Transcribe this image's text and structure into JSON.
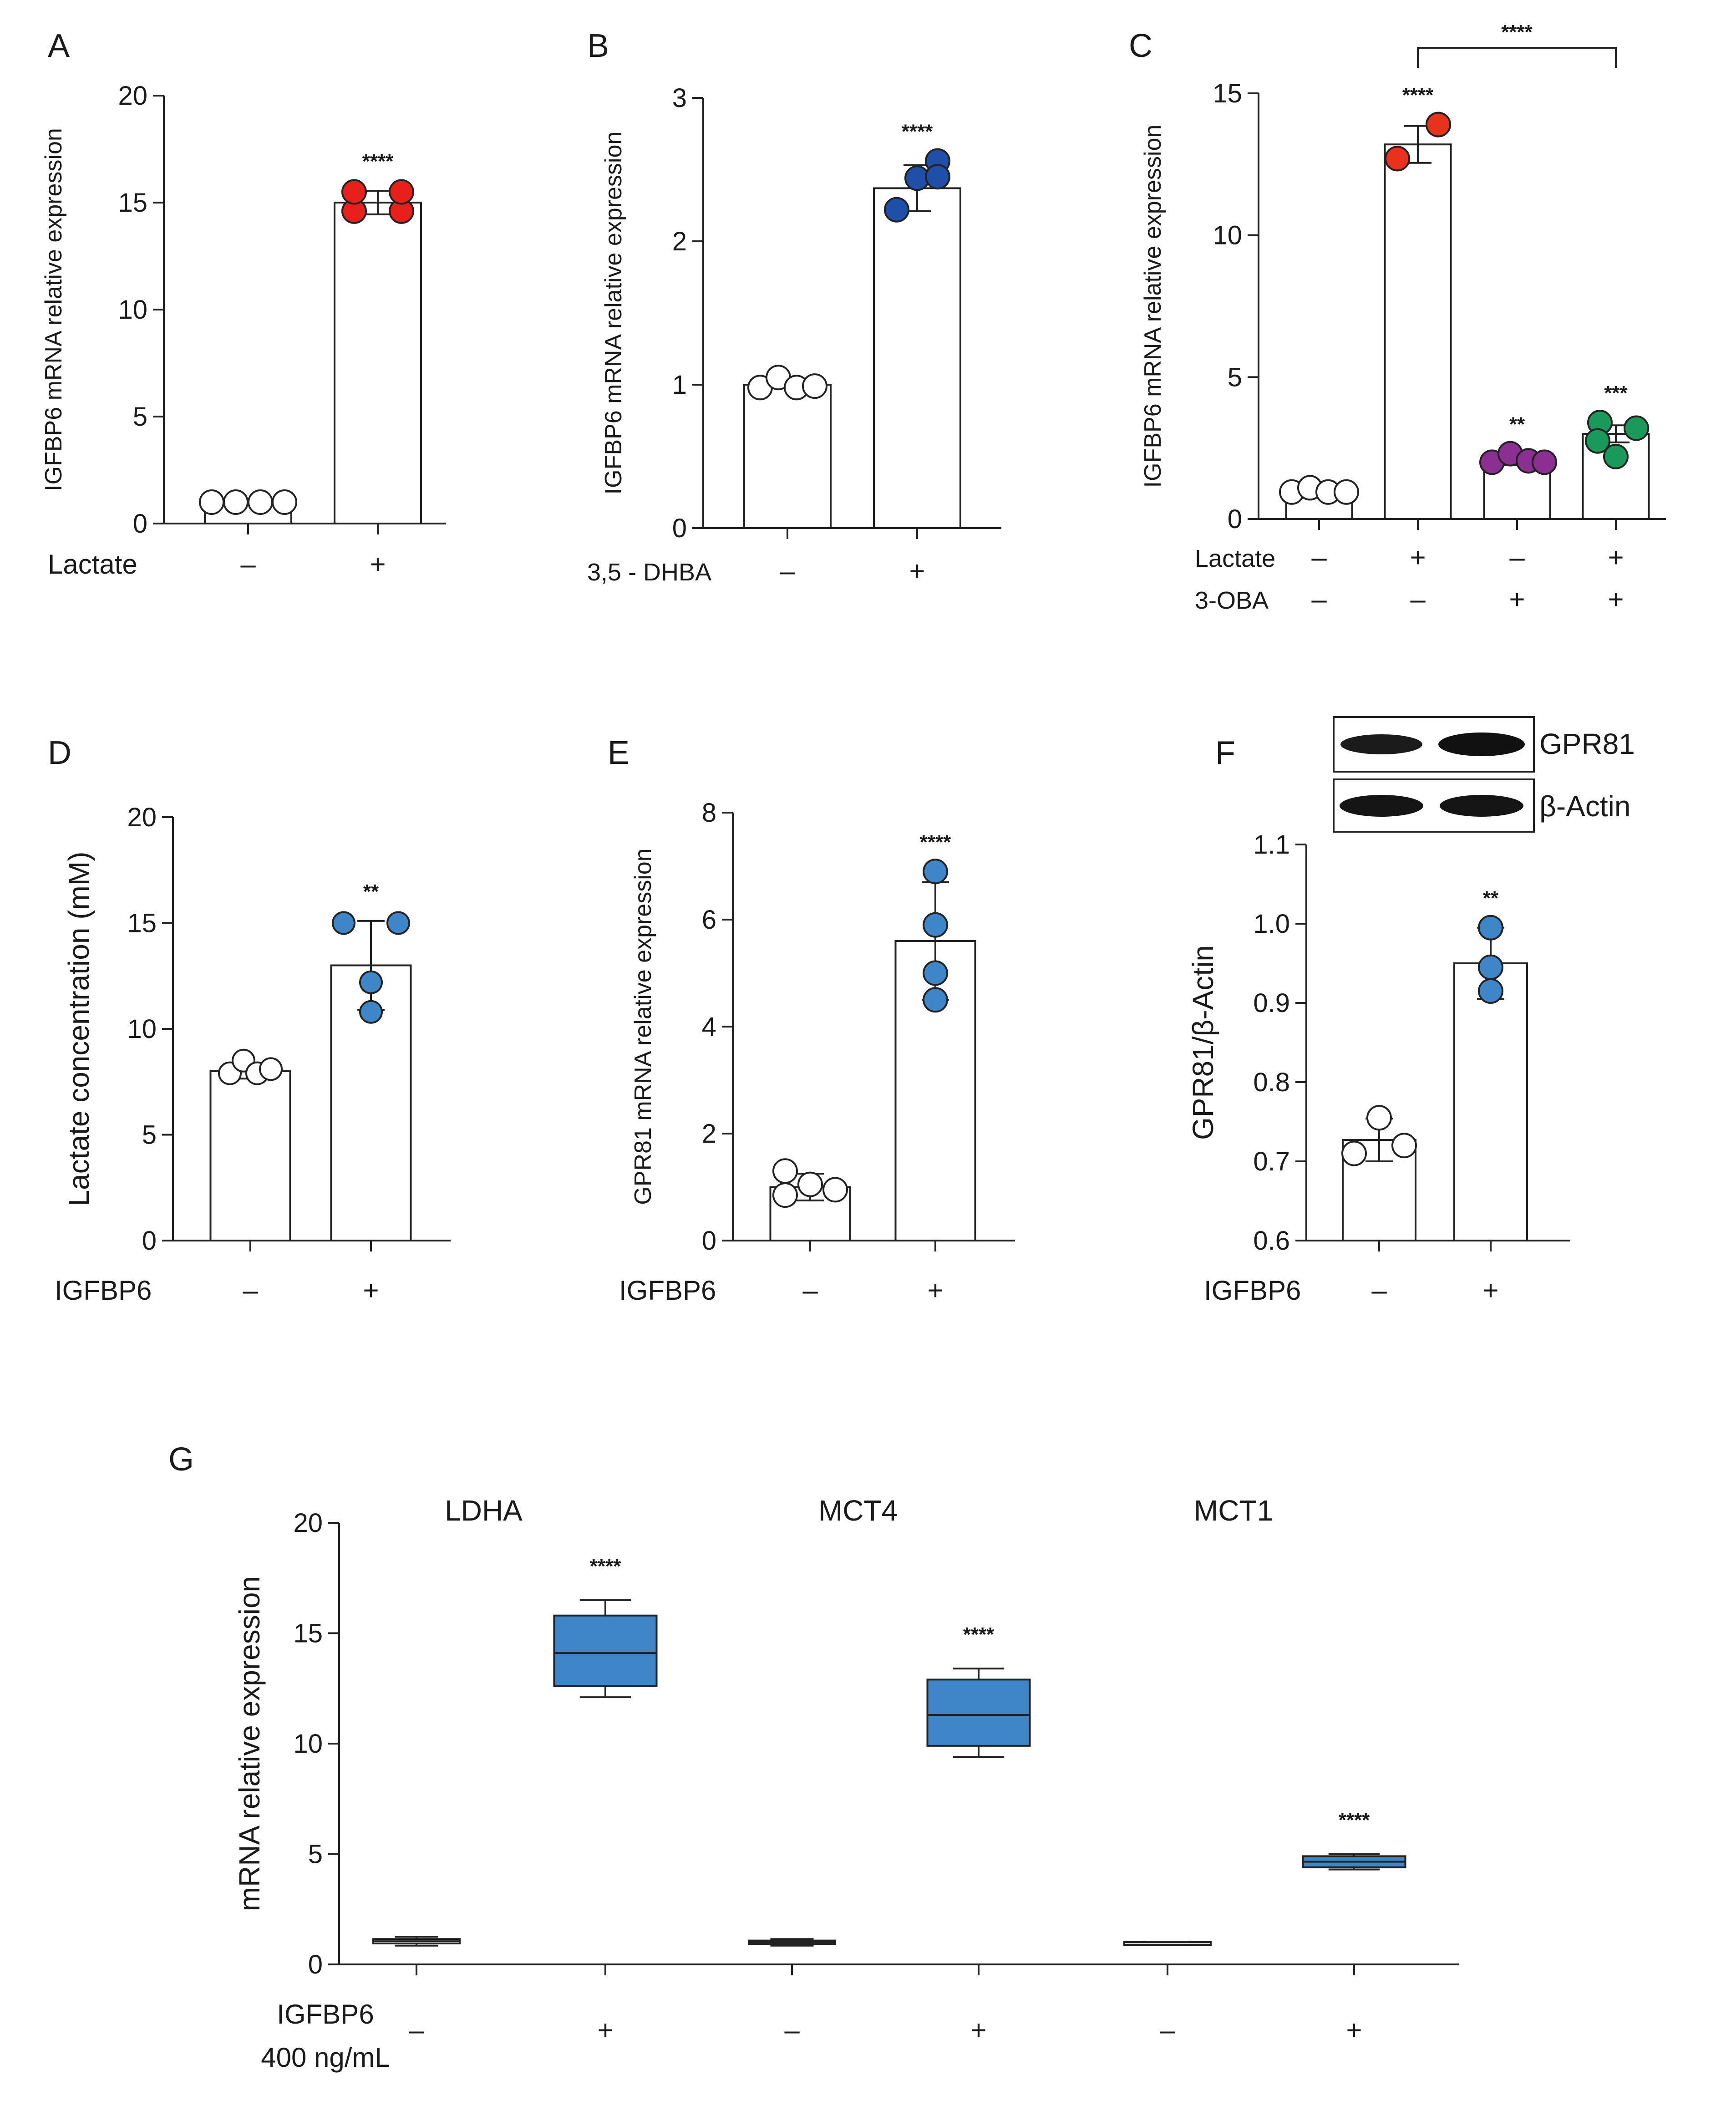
{
  "chart_data": [
    {
      "id": "A",
      "type": "bar",
      "panel_label": "A",
      "ylabel": "IGFBP6 mRNA relative expression",
      "ylim": [
        0,
        20
      ],
      "yticks": [
        0,
        5,
        10,
        15,
        20
      ],
      "treatment_rows": [
        {
          "label": "Lactate",
          "signs": [
            "–",
            "+"
          ]
        }
      ],
      "bars": [
        {
          "value": 1.0,
          "err": 0.0,
          "dots": [
            1.0,
            1.0,
            1.0,
            1.0
          ],
          "color": "#ffffff",
          "sig": ""
        },
        {
          "value": 15.0,
          "err": 0.55,
          "dots": [
            14.6,
            14.6,
            15.5,
            15.5
          ],
          "color": "#e8201c",
          "sig": "****"
        }
      ]
    },
    {
      "id": "B",
      "type": "bar",
      "panel_label": "B",
      "ylabel": "IGFBP6 mRNA relative expression",
      "ylim": [
        0,
        3
      ],
      "yticks": [
        0,
        1,
        2,
        3
      ],
      "treatment_rows": [
        {
          "label": "3,5 - DHBA",
          "signs": [
            "–",
            "+"
          ]
        }
      ],
      "bars": [
        {
          "value": 1.0,
          "err": 0.0,
          "dots": [
            0.98,
            1.05,
            0.98,
            0.99
          ],
          "color": "#ffffff",
          "sig": ""
        },
        {
          "value": 2.37,
          "err": 0.16,
          "dots": [
            2.22,
            2.44,
            2.56,
            2.45
          ],
          "color": "#1f4fa8",
          "sig": "****"
        }
      ]
    },
    {
      "id": "C",
      "type": "bar",
      "panel_label": "C",
      "ylabel": "IGFBP6 mRNA relative expression",
      "ylim": [
        0,
        15
      ],
      "yticks": [
        0,
        5,
        10,
        15
      ],
      "treatment_rows": [
        {
          "label": "Lactate",
          "signs": [
            "–",
            "+",
            "–",
            "+"
          ]
        },
        {
          "label": "3-OBA",
          "signs": [
            "–",
            "–",
            "+",
            "+"
          ]
        }
      ],
      "bars": [
        {
          "value": 1.0,
          "err": 0.0,
          "dots": [
            0.95,
            1.1,
            0.95,
            0.95
          ],
          "color": "#ffffff",
          "sig": ""
        },
        {
          "value": 13.2,
          "err": 0.65,
          "dots": [
            12.7,
            13.9,
            12.7,
            13.9
          ],
          "color": "#e8331c",
          "sig": "****"
        },
        {
          "value": 2.05,
          "err": 0.15,
          "dots": [
            2.0,
            2.3,
            2.05,
            2.0
          ],
          "color": "#8b2f93",
          "sig": "**"
        },
        {
          "value": 3.0,
          "err": 0.3,
          "dots": [
            3.4,
            2.75,
            2.2,
            3.2
          ],
          "color": "#1a9a5a",
          "sig": "***"
        }
      ],
      "bracket": {
        "from": 1,
        "to": 3,
        "label": "****"
      }
    },
    {
      "id": "D",
      "type": "bar",
      "panel_label": "D",
      "ylabel": "Lactate concentration (mM)",
      "ylim": [
        0,
        20
      ],
      "yticks": [
        0,
        5,
        10,
        15,
        20
      ],
      "treatment_rows": [
        {
          "label": "IGFBP6",
          "signs": [
            "–",
            "+"
          ]
        }
      ],
      "bars": [
        {
          "value": 8.0,
          "err": 0.35,
          "dots": [
            7.9,
            8.5,
            7.9,
            8.1
          ],
          "color": "#ffffff",
          "sig": ""
        },
        {
          "value": 13.0,
          "err": 2.1,
          "dots": [
            15.0,
            15.0,
            12.2,
            10.8
          ],
          "color": "#3f86c9",
          "sig": "**"
        }
      ]
    },
    {
      "id": "E",
      "type": "bar",
      "panel_label": "E",
      "ylabel": "GPR81 mRNA relative expression",
      "ylim": [
        0,
        8
      ],
      "yticks": [
        0,
        2,
        4,
        6,
        8
      ],
      "treatment_rows": [
        {
          "label": "IGFBP6",
          "signs": [
            "–",
            "+"
          ]
        }
      ],
      "bars": [
        {
          "value": 1.0,
          "err": 0.25,
          "dots": [
            1.3,
            0.85,
            1.05,
            0.95
          ],
          "color": "#ffffff",
          "sig": ""
        },
        {
          "value": 5.6,
          "err": 1.1,
          "dots": [
            6.9,
            5.9,
            5.0,
            4.5
          ],
          "color": "#3f86c9",
          "sig": "****"
        }
      ]
    },
    {
      "id": "F",
      "type": "bar",
      "panel_label": "F",
      "ylabel": "GPR81/β-Actin",
      "ylim": [
        0.6,
        1.1
      ],
      "yticks": [
        0.6,
        0.7,
        0.8,
        0.9,
        1.0,
        1.1
      ],
      "tick_decimals": 1,
      "treatment_rows": [
        {
          "label": "IGFBP6",
          "signs": [
            "–",
            "+"
          ]
        }
      ],
      "bars": [
        {
          "value": 0.727,
          "err": 0.027,
          "dots": [
            0.71,
            0.755,
            0.72
          ],
          "color": "#ffffff",
          "sig": ""
        },
        {
          "value": 0.95,
          "err": 0.045,
          "dots": [
            0.995,
            0.945,
            0.915
          ],
          "color": "#3f86c9",
          "sig": "**"
        }
      ],
      "blot_labels": [
        "GPR81",
        "β-Actin"
      ]
    },
    {
      "id": "G",
      "type": "box",
      "panel_label": "G",
      "ylabel": "mRNA relative expression",
      "ylim": [
        0,
        20
      ],
      "yticks": [
        0,
        5,
        10,
        15,
        20
      ],
      "treatment_label_lines": [
        "IGFBP6",
        "400 ng/mL"
      ],
      "groups": [
        {
          "name": "LDHA",
          "boxes": [
            {
              "sign": "–",
              "min": 0.85,
              "q1": 0.95,
              "median": 1.05,
              "q3": 1.15,
              "max": 1.25,
              "color": "#ffffff",
              "sig": ""
            },
            {
              "sign": "+",
              "min": 12.1,
              "q1": 12.6,
              "median": 14.1,
              "q3": 15.8,
              "max": 16.5,
              "color": "#3f86c9",
              "sig": "****"
            }
          ]
        },
        {
          "name": "MCT4",
          "boxes": [
            {
              "sign": "–",
              "min": 0.85,
              "q1": 0.92,
              "median": 1.0,
              "q3": 1.08,
              "max": 1.15,
              "color": "#ffffff",
              "sig": ""
            },
            {
              "sign": "+",
              "min": 9.4,
              "q1": 9.9,
              "median": 11.3,
              "q3": 12.9,
              "max": 13.4,
              "color": "#3f86c9",
              "sig": "****"
            }
          ]
        },
        {
          "name": "MCT1",
          "boxes": [
            {
              "sign": "–",
              "min": 0.97,
              "q1": 0.99,
              "median": 1.0,
              "q3": 1.01,
              "max": 1.03,
              "color": "#ffffff",
              "sig": ""
            },
            {
              "sign": "+",
              "min": 4.3,
              "q1": 4.4,
              "median": 4.65,
              "q3": 4.9,
              "max": 5.0,
              "color": "#3f86c9",
              "sig": "****"
            }
          ]
        }
      ]
    }
  ]
}
